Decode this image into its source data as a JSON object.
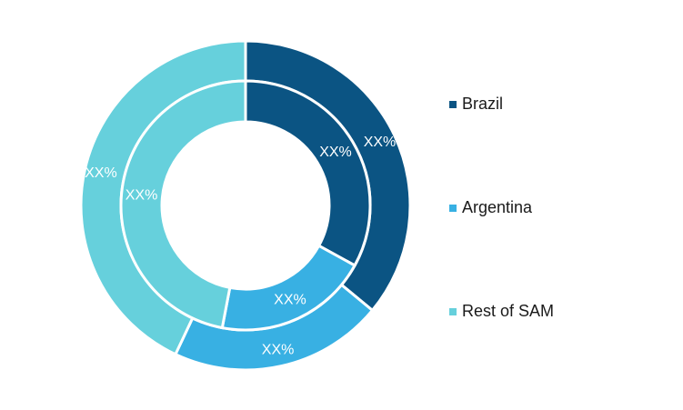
{
  "chart_data": {
    "type": "pie",
    "subtype": "double-donut",
    "categories": [
      "Brazil",
      "Argentina",
      "Rest of SAM"
    ],
    "colors": [
      "#0b5483",
      "#38b0e3",
      "#66d0dc"
    ],
    "rings": [
      {
        "ring": "outer",
        "values": [
          36,
          21,
          43
        ],
        "labels": [
          "XX%",
          "XX%",
          "XX%"
        ]
      },
      {
        "ring": "inner",
        "values": [
          33,
          20,
          47
        ],
        "labels": [
          "XX%",
          "XX%",
          "XX%"
        ]
      }
    ],
    "legend_position": "right"
  },
  "legend": [
    {
      "label": "Brazil",
      "color": "#0b5483"
    },
    {
      "label": "Argentina",
      "color": "#38b0e3"
    },
    {
      "label": "Rest of SAM",
      "color": "#66d0dc"
    }
  ]
}
